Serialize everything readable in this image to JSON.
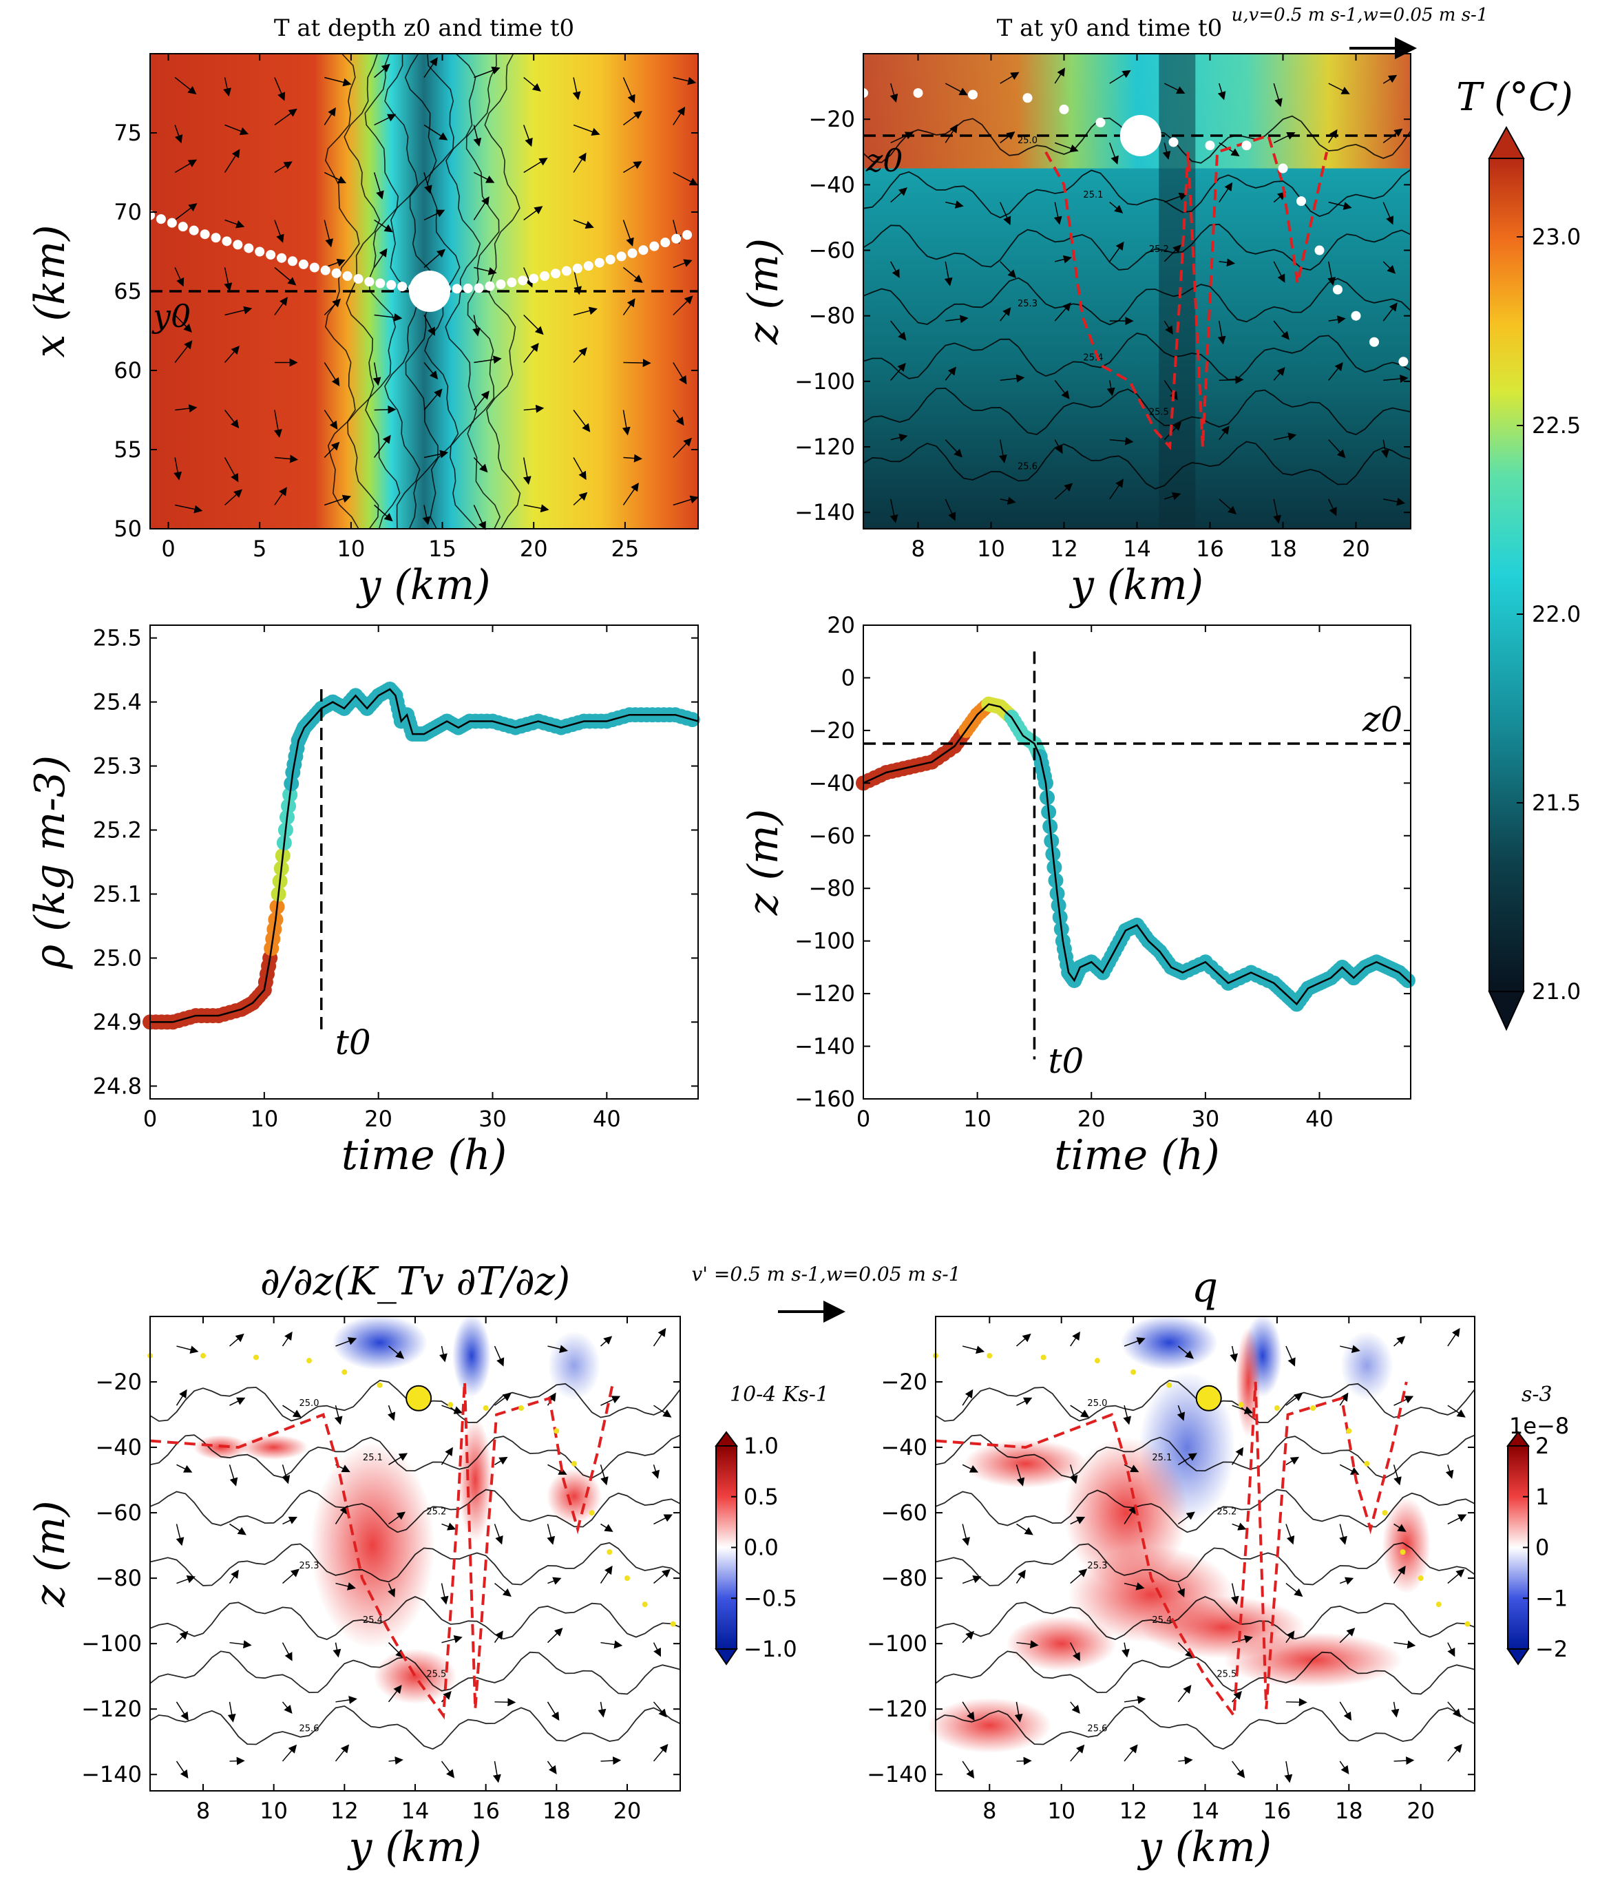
{
  "chart_data": [
    {
      "id": "p1",
      "type": "heatmap",
      "title": "T at depth z0 and time t0",
      "xlabel": "y (km)",
      "ylabel": "x (km)",
      "xlim": [
        -1,
        29
      ],
      "ylim": [
        50,
        80
      ],
      "xticks": [
        0,
        5,
        10,
        15,
        20,
        25
      ],
      "yticks": [
        50,
        55,
        60,
        65,
        70,
        75
      ],
      "ref_line_y": 65,
      "ref_label": "y0",
      "marker": {
        "x": 14.3,
        "y": 65
      },
      "trajectory": {
        "x": [
          -1,
          2,
          5,
          8,
          11,
          14,
          17,
          20,
          23,
          26,
          29
        ],
        "y": [
          69.8,
          68.6,
          67.5,
          66.5,
          65.6,
          65.1,
          65.2,
          65.8,
          66.6,
          67.6,
          68.8
        ]
      }
    },
    {
      "id": "p2",
      "type": "heatmap",
      "title": "T at y0 and time t0",
      "xlabel": "y (km)",
      "ylabel": "z (m)",
      "xlim": [
        6.5,
        21.5
      ],
      "ylim": [
        -145,
        0
      ],
      "xticks": [
        8,
        10,
        12,
        14,
        16,
        18,
        20
      ],
      "yticks": [
        -140,
        -120,
        -100,
        -80,
        -60,
        -40,
        -20
      ],
      "ref_line_z": -25,
      "ref_label": "z0",
      "marker": {
        "x": 14.1,
        "z": -25
      },
      "scale_label": "u,v=0.5 m s-1,w=0.05 m s-1",
      "trajectory": {
        "x": [
          6.5,
          8,
          9.5,
          11,
          12,
          13,
          14.1,
          15,
          16,
          17,
          18,
          18.5,
          19,
          19.5,
          20,
          20.5,
          21.3
        ],
        "z": [
          -12,
          -12,
          -12.5,
          -13.5,
          -17,
          -21,
          -25,
          -27,
          -28,
          -28,
          -35,
          -45,
          -60,
          -72,
          -80,
          -88,
          -94
        ]
      },
      "contour_labels": [
        "25.0",
        "25.1",
        "25.2",
        "25.3",
        "25.4",
        "25.5",
        "25.6"
      ]
    },
    {
      "id": "p3",
      "type": "line",
      "xlabel": "time (h)",
      "ylabel": "ρ (kg m-3)",
      "xlim": [
        0,
        48
      ],
      "ylim": [
        24.78,
        25.52
      ],
      "xticks": [
        0,
        10,
        20,
        30,
        40
      ],
      "yticks": [
        24.8,
        24.9,
        25.0,
        25.1,
        25.2,
        25.3,
        25.4,
        25.5
      ],
      "vline_t0": 15,
      "t0_label": "t0",
      "x": [
        0,
        2,
        4,
        6,
        8,
        9,
        10,
        10.5,
        11,
        11.5,
        12,
        12.5,
        13,
        13.5,
        14,
        15,
        16,
        17,
        18,
        19,
        20,
        21,
        21.5,
        22,
        22.5,
        23,
        24,
        25,
        26,
        27,
        28,
        30,
        32,
        34,
        36,
        38,
        40,
        42,
        44,
        46,
        48
      ],
      "y": [
        24.9,
        24.9,
        24.91,
        24.91,
        24.92,
        24.93,
        24.95,
        25.0,
        25.06,
        25.14,
        25.22,
        25.29,
        25.34,
        25.36,
        25.37,
        25.39,
        25.4,
        25.39,
        25.41,
        25.39,
        25.41,
        25.42,
        25.41,
        25.37,
        25.38,
        25.35,
        25.35,
        25.36,
        25.37,
        25.36,
        25.37,
        25.37,
        25.36,
        25.37,
        25.36,
        25.37,
        25.37,
        25.38,
        25.38,
        25.38,
        25.37
      ]
    },
    {
      "id": "p4",
      "type": "line",
      "xlabel": "time (h)",
      "ylabel": "z (m)",
      "xlim": [
        0,
        48
      ],
      "ylim": [
        -160,
        20
      ],
      "xticks": [
        0,
        10,
        20,
        30,
        40
      ],
      "yticks": [
        -160,
        -140,
        -120,
        -100,
        -80,
        -60,
        -40,
        -20,
        0,
        20
      ],
      "vline_t0": 15,
      "t0_label": "t0",
      "hline_z0": -25,
      "z0_label": "z0",
      "x": [
        0,
        2,
        4,
        6,
        8,
        9,
        10,
        11,
        12,
        13,
        14,
        15,
        15.5,
        16,
        16.5,
        17,
        17.5,
        18,
        18.5,
        19,
        20,
        21,
        22,
        23,
        24,
        25,
        26,
        27,
        28,
        30,
        32,
        34,
        36,
        37,
        38,
        39,
        40,
        41,
        42,
        43,
        44,
        45,
        46,
        47,
        48
      ],
      "y": [
        -40,
        -36,
        -34,
        -32,
        -26,
        -20,
        -14,
        -10,
        -11,
        -15,
        -22,
        -25,
        -30,
        -40,
        -62,
        -82,
        -100,
        -112,
        -115,
        -110,
        -108,
        -112,
        -104,
        -96,
        -94,
        -100,
        -104,
        -110,
        -112,
        -108,
        -116,
        -112,
        -116,
        -120,
        -124,
        -118,
        -116,
        -114,
        -110,
        -114,
        -110,
        -108,
        -110,
        -112,
        -116
      ]
    },
    {
      "id": "p5",
      "type": "heatmap",
      "title": "∂/∂z(K_Tv ∂T/∂z)",
      "xlabel": "y (km)",
      "ylabel": "z (m)",
      "xlim": [
        6.5,
        21.5
      ],
      "ylim": [
        -145,
        0
      ],
      "xticks": [
        8,
        10,
        12,
        14,
        16,
        18,
        20
      ],
      "yticks": [
        -140,
        -120,
        -100,
        -80,
        -60,
        -40,
        -20
      ],
      "marker": {
        "x": 14.1,
        "z": -25
      },
      "scale_label": "v' =0.5 m s-1,w=0.05 m s-1",
      "colorbar": {
        "label": "10-4 Ks-1",
        "ticks": [
          "1.0",
          "0.5",
          "0.0",
          "−0.5",
          "−1.0"
        ]
      }
    },
    {
      "id": "p6",
      "type": "heatmap",
      "title": "q",
      "xlabel": "y (km)",
      "ylabel": "",
      "xlim": [
        6.5,
        21.5
      ],
      "ylim": [
        -145,
        0
      ],
      "xticks": [
        8,
        10,
        12,
        14,
        16,
        18,
        20
      ],
      "yticks": [
        -140,
        -120,
        -100,
        -80,
        -60,
        -40,
        -20
      ],
      "marker": {
        "x": 14.1,
        "z": -25
      },
      "colorbar": {
        "label": "s-3",
        "exp": "1e−8",
        "ticks": [
          "2",
          "1",
          "0",
          "−1",
          "−2"
        ]
      }
    }
  ],
  "colorbar_T": {
    "label": "T (°C)",
    "ticks": [
      "23.0",
      "22.5",
      "22.0",
      "21.5",
      "21.0"
    ]
  },
  "text": {
    "p1_title": "T at depth z0 and time t0",
    "p2_title": "T at y0 and time t0",
    "p5_title_d": "∂",
    "p6_title": "q",
    "cbT_label": "T (°C)"
  }
}
